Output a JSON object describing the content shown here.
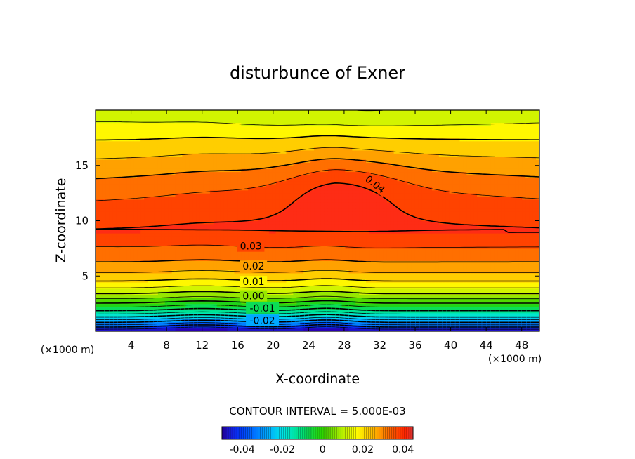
{
  "chart_data": {
    "type": "heatmap",
    "title": "disturbunce of Exner",
    "xlabel": "X-coordinate",
    "ylabel": "Z-coordinate",
    "x_unit_left": "(×1000 m)",
    "x_unit_right": "(×1000 m)",
    "xlim": [
      0,
      50
    ],
    "ylim": [
      0,
      20
    ],
    "x_ticks": [
      4,
      8,
      12,
      16,
      20,
      24,
      28,
      32,
      36,
      40,
      44,
      48
    ],
    "y_ticks": [
      5,
      10,
      15
    ],
    "value_range": [
      -0.05,
      0.045
    ],
    "contour_interval_text": "CONTOUR INTERVAL = 5.000E-03",
    "contour_interval": 0.005,
    "colorbar_ticks": [
      "-0.04",
      "-0.02",
      "0",
      "0.02",
      "0.04"
    ],
    "colorbar_tick_values": [
      -0.04,
      -0.02,
      0,
      0.02,
      0.04
    ],
    "contour_labels": [
      {
        "text": "0.04",
        "x": 31.5,
        "z": 13.3,
        "angle": 38
      },
      {
        "text": "0.03",
        "x": 17.5,
        "z": 7.7,
        "angle": 0
      },
      {
        "text": "0.02",
        "x": 17.8,
        "z": 5.9,
        "angle": 0
      },
      {
        "text": "0.01",
        "x": 17.8,
        "z": 4.5,
        "angle": 0
      },
      {
        "text": "0.00",
        "x": 17.8,
        "z": 3.2,
        "angle": 0
      },
      {
        "text": "-0.01",
        "x": 18.8,
        "z": 2.1,
        "angle": 0
      },
      {
        "text": "-0.02",
        "x": 18.8,
        "z": 1.0,
        "angle": 0
      }
    ]
  }
}
